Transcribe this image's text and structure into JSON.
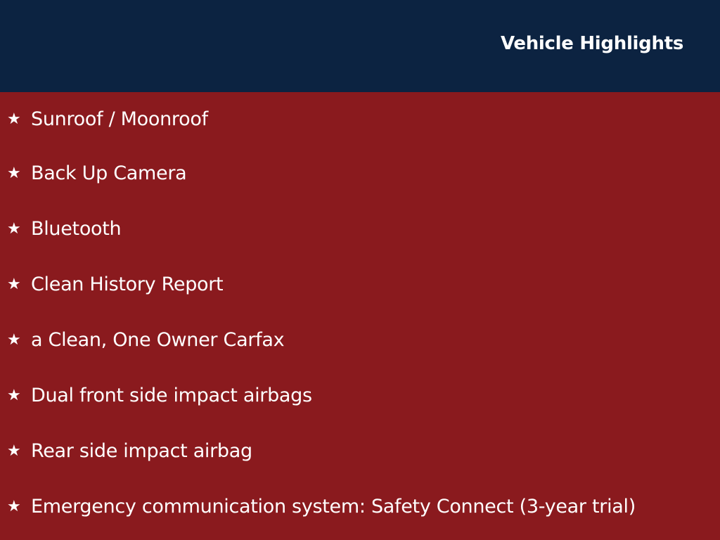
{
  "header": {
    "title": "Vehicle Highlights"
  },
  "highlights": [
    {
      "icon": "star-icon",
      "label": "Sunroof / Moonroof"
    },
    {
      "icon": "star-icon",
      "label": "Back Up Camera"
    },
    {
      "icon": "star-icon",
      "label": "Bluetooth"
    },
    {
      "icon": "star-icon",
      "label": "Clean History Report"
    },
    {
      "icon": "star-icon",
      "label": "a Clean, One Owner Carfax"
    },
    {
      "icon": "star-icon",
      "label": "Dual front side impact airbags"
    },
    {
      "icon": "star-icon",
      "label": "Rear side impact airbag"
    },
    {
      "icon": "star-icon",
      "label": "Emergency communication system: Safety Connect (3-year trial)"
    }
  ],
  "colors": {
    "header_bg": "#0c2341",
    "body_bg": "#8a1a1e",
    "text": "#ffffff"
  }
}
